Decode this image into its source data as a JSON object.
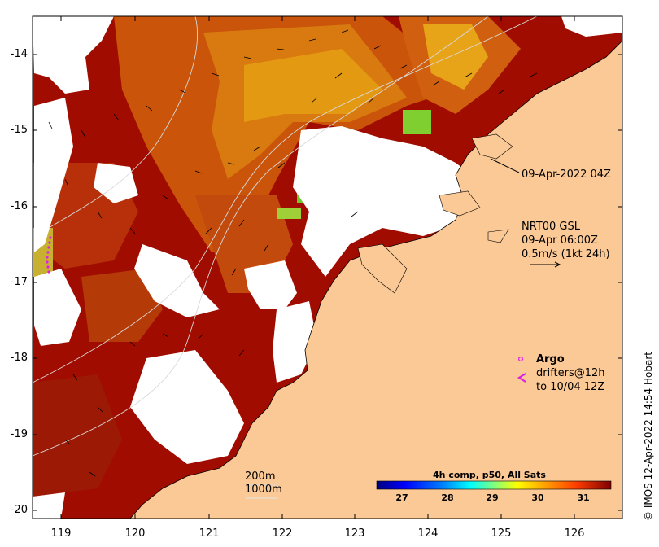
{
  "y_ticks": [
    "-14",
    "-15",
    "-16",
    "-17",
    "-18",
    "-19",
    "-20"
  ],
  "x_ticks": [
    "119",
    "120",
    "121",
    "122",
    "123",
    "124",
    "125",
    "126"
  ],
  "sat_time": "09-Apr-2022 04Z",
  "current": {
    "name": "NRT00 GSL",
    "time": "09-Apr 06:00Z",
    "scale": "0.5m/s (1kt 24h)"
  },
  "argo": {
    "label": "Argo",
    "drifters": "drifters@12h",
    "until": "to 10/04 12Z",
    "color": "#e020e0"
  },
  "isobaths": [
    "200m",
    "1000m"
  ],
  "colorbar": {
    "title": "4h comp, p50, All Sats",
    "ticks": [
      "27",
      "28",
      "29",
      "30",
      "31"
    ],
    "colors": [
      "#00007f",
      "#0000ff",
      "#007fff",
      "#00ffff",
      "#7fff7f",
      "#ffff00",
      "#ff7f00",
      "#ff0000",
      "#7f0000"
    ]
  },
  "credit": "© IMOS 12-Apr-2022 14:54 Hobart",
  "colors": {
    "land": "#fbc996",
    "sst_hot": "#a10c00",
    "sst_mid": "#d2690a",
    "sst_warm": "#e39a12"
  }
}
